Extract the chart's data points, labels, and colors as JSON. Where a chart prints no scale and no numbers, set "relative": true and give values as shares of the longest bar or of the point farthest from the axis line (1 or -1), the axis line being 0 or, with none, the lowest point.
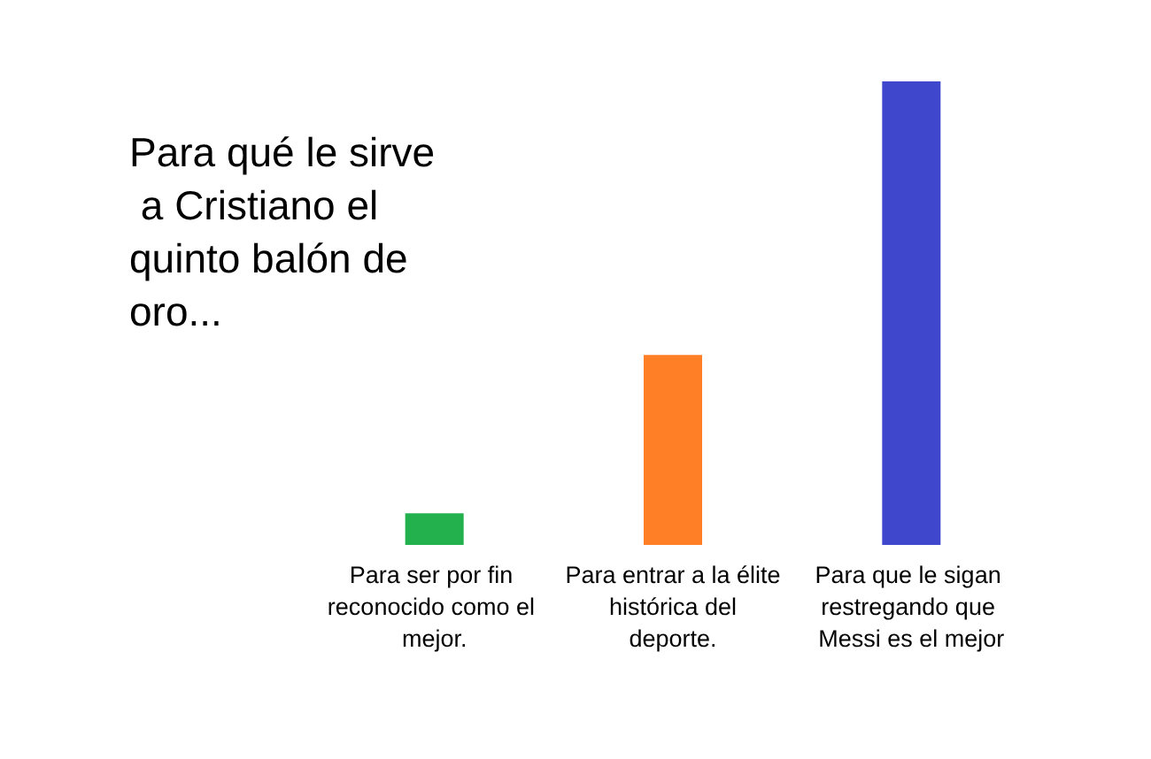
{
  "chart_data": {
    "type": "bar",
    "title": "Para qué le sirve a Cristiano el quinto balón de oro...",
    "categories": [
      "Para ser por fin reconocido como el mejor.",
      "Para entrar a la élite histórica del deporte.",
      "Para que le sigan restregando que Messi es el mejor"
    ],
    "values": [
      0.068,
      0.41,
      1
    ],
    "colors": [
      "#22b14c",
      "#ff7f27",
      "#3f48cc"
    ],
    "relative": true,
    "grid": false,
    "legend": false
  }
}
